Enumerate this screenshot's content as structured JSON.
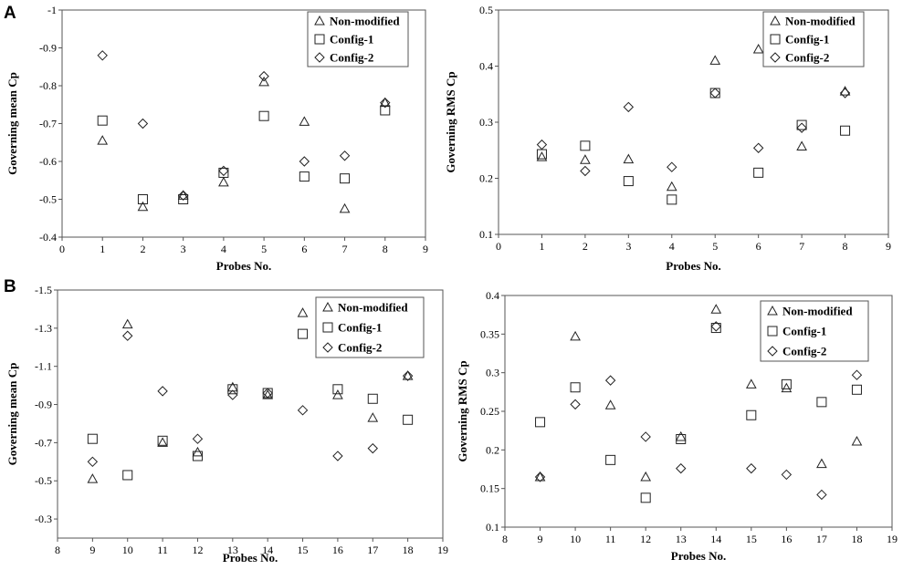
{
  "panel_labels": [
    "A",
    "B"
  ],
  "chart_data": [
    {
      "type": "scatter",
      "panel": "A",
      "xlabel": "Probes No.",
      "ylabel": "Governing mean Cp",
      "xlim": [
        0,
        9
      ],
      "ylim": [
        -0.4,
        -1
      ],
      "y_reversed": true,
      "xticks": [
        "0",
        "1",
        "2",
        "3",
        "4",
        "5",
        "6",
        "7",
        "8",
        "9"
      ],
      "yticks": [
        "-1",
        "-0.9",
        "-0.8",
        "-0.7",
        "-0.6",
        "-0.5",
        "-0.4"
      ],
      "legend": "top-right",
      "series": [
        {
          "name": "Non-modified",
          "marker": "triangle",
          "x": [
            1,
            2,
            3,
            4,
            5,
            6,
            7,
            8
          ],
          "y": [
            -0.655,
            -0.48,
            -0.51,
            -0.545,
            -0.81,
            -0.705,
            -0.475,
            -0.755
          ]
        },
        {
          "name": "Config-1",
          "marker": "square",
          "x": [
            1,
            2,
            3,
            4,
            5,
            6,
            7,
            8
          ],
          "y": [
            -0.708,
            -0.5,
            -0.5,
            -0.57,
            -0.72,
            -0.56,
            -0.555,
            -0.735
          ]
        },
        {
          "name": "Config-2",
          "marker": "diamond",
          "x": [
            1,
            2,
            3,
            4,
            5,
            6,
            7,
            8
          ],
          "y": [
            -0.88,
            -0.7,
            -0.51,
            -0.575,
            -0.825,
            -0.6,
            -0.615,
            -0.755
          ]
        }
      ]
    },
    {
      "type": "scatter",
      "panel": "A",
      "xlabel": "Probes No.",
      "ylabel": "Governing RMS Cp",
      "xlim": [
        0,
        9
      ],
      "ylim": [
        0.1,
        0.5
      ],
      "y_reversed": false,
      "xticks": [
        "0",
        "1",
        "2",
        "3",
        "4",
        "5",
        "6",
        "7",
        "8",
        "9"
      ],
      "yticks": [
        "0.1",
        "0.2",
        "0.3",
        "0.4",
        "0.5"
      ],
      "legend": "top-right",
      "series": [
        {
          "name": "Non-modified",
          "marker": "triangle",
          "x": [
            1,
            2,
            3,
            4,
            5,
            6,
            7,
            8
          ],
          "y": [
            0.238,
            0.233,
            0.234,
            0.185,
            0.41,
            0.43,
            0.257,
            0.355
          ]
        },
        {
          "name": "Config-1",
          "marker": "square",
          "x": [
            1,
            2,
            3,
            4,
            5,
            6,
            7,
            8
          ],
          "y": [
            0.243,
            0.258,
            0.195,
            0.162,
            0.352,
            0.21,
            0.295,
            0.285
          ]
        },
        {
          "name": "Config-2",
          "marker": "diamond",
          "x": [
            1,
            2,
            3,
            4,
            5,
            6,
            7,
            8
          ],
          "y": [
            0.26,
            0.213,
            0.327,
            0.22,
            0.352,
            0.254,
            0.29,
            0.352
          ]
        }
      ]
    },
    {
      "type": "scatter",
      "panel": "B",
      "xlabel": "Probes No.",
      "ylabel": "Governing mean  Cp",
      "xlim": [
        8,
        19
      ],
      "ylim": [
        -0.2,
        -1.5
      ],
      "y_reversed": true,
      "xticks": [
        "8",
        "9",
        "10",
        "11",
        "12",
        "13",
        "14",
        "15",
        "16",
        "17",
        "18",
        "19"
      ],
      "yticks": [
        "-1.5",
        "-1.3",
        "-1.1",
        "-0.9",
        "-0.7",
        "-0.5",
        "-0.3"
      ],
      "legend": "top-right",
      "series": [
        {
          "name": "Non-modified",
          "marker": "triangle",
          "x": [
            9,
            10,
            11,
            12,
            13,
            14,
            15,
            16,
            17,
            18
          ],
          "y": [
            -0.51,
            -1.32,
            -0.7,
            -0.65,
            -0.99,
            -0.95,
            -1.38,
            -0.95,
            -0.83,
            -1.05
          ]
        },
        {
          "name": "Config-1",
          "marker": "square",
          "x": [
            9,
            10,
            11,
            12,
            13,
            14,
            15,
            16,
            17,
            18
          ],
          "y": [
            -0.72,
            -0.53,
            -0.71,
            -0.63,
            -0.98,
            -0.96,
            -1.27,
            -0.98,
            -0.93,
            -0.82
          ]
        },
        {
          "name": "Config-2",
          "marker": "diamond",
          "x": [
            9,
            10,
            11,
            12,
            13,
            14,
            15,
            16,
            17,
            18
          ],
          "y": [
            -0.6,
            -1.26,
            -0.97,
            -0.72,
            -0.95,
            -0.96,
            -0.87,
            -0.63,
            -0.67,
            -1.05
          ]
        }
      ]
    },
    {
      "type": "scatter",
      "panel": "B",
      "xlabel": "Probes No.",
      "ylabel": "Governing RMS Cp",
      "xlim": [
        8,
        19
      ],
      "ylim": [
        0.1,
        0.4
      ],
      "y_reversed": false,
      "xticks": [
        "8",
        "9",
        "10",
        "11",
        "12",
        "13",
        "14",
        "15",
        "16",
        "17",
        "18",
        "19"
      ],
      "yticks": [
        "0.1",
        "0.15",
        "0.2",
        "0.25",
        "0.3",
        "0.35",
        "0.4"
      ],
      "legend": "top-right",
      "series": [
        {
          "name": "Non-modified",
          "marker": "triangle",
          "x": [
            9,
            10,
            11,
            12,
            13,
            14,
            15,
            16,
            17,
            18
          ],
          "y": [
            0.165,
            0.347,
            0.258,
            0.165,
            0.217,
            0.382,
            0.285,
            0.28,
            0.182,
            0.211
          ]
        },
        {
          "name": "Config-1",
          "marker": "square",
          "x": [
            9,
            10,
            11,
            12,
            13,
            14,
            15,
            16,
            17,
            18
          ],
          "y": [
            0.236,
            0.281,
            0.187,
            0.138,
            0.214,
            0.358,
            0.245,
            0.285,
            0.262,
            0.278
          ]
        },
        {
          "name": "Config-2",
          "marker": "diamond",
          "x": [
            9,
            10,
            11,
            12,
            13,
            14,
            15,
            16,
            17,
            18
          ],
          "y": [
            0.165,
            0.259,
            0.29,
            0.217,
            0.176,
            0.36,
            0.176,
            0.168,
            0.142,
            0.297
          ]
        }
      ]
    }
  ]
}
